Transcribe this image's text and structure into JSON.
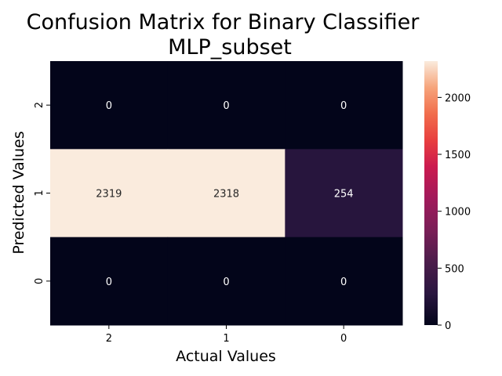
{
  "chart_data": {
    "type": "heatmap",
    "title_lines": [
      "Confusion Matrix for Binary Classifier",
      "MLP_subset"
    ],
    "xlabel": "Actual Values",
    "ylabel": "Predicted Values",
    "x_categories": [
      "2",
      "1",
      "0"
    ],
    "y_categories": [
      "2",
      "1",
      "0"
    ],
    "values": [
      [
        0,
        0,
        0
      ],
      [
        2319,
        2318,
        254
      ],
      [
        0,
        0,
        0
      ]
    ],
    "colorbar": {
      "min": 0,
      "max": 2319,
      "ticks": [
        0,
        500,
        1000,
        1500,
        2000
      ],
      "colormap": "rocket"
    }
  }
}
